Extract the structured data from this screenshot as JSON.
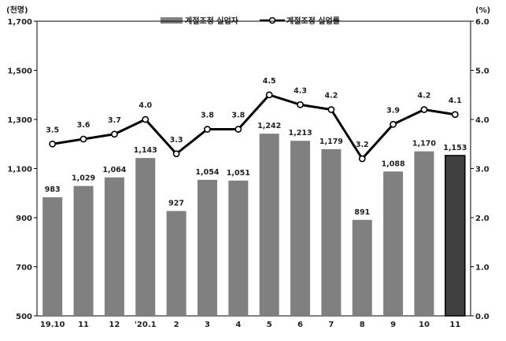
{
  "chart_data": {
    "type": "bar+line",
    "left_unit": "(천명)",
    "right_unit": "(%)",
    "categories": [
      "19.10",
      "11",
      "12",
      "'20.1",
      "2",
      "3",
      "4",
      "5",
      "6",
      "7",
      "8",
      "9",
      "10",
      "11"
    ],
    "left_axis": {
      "range": [
        500,
        1700
      ],
      "ticks": [
        "500",
        "700",
        "900",
        "1,100",
        "1,300",
        "1,500",
        "1,700"
      ],
      "tick_values": [
        500,
        700,
        900,
        1100,
        1300,
        1500,
        1700
      ]
    },
    "right_axis": {
      "range": [
        0,
        6
      ],
      "ticks": [
        "0.0",
        "1.0",
        "2.0",
        "3.0",
        "4.0",
        "5.0",
        "6.0"
      ],
      "tick_values": [
        0,
        1,
        2,
        3,
        4,
        5,
        6
      ]
    },
    "series": [
      {
        "name": "계절조정 실업자",
        "kind": "bar",
        "axis": "left",
        "values": [
          983,
          1029,
          1064,
          1143,
          927,
          1054,
          1051,
          1242,
          1213,
          1179,
          891,
          1088,
          1170,
          1153
        ],
        "labels": [
          "983",
          "1,029",
          "1,064",
          "1,143",
          "927",
          "1,054",
          "1,051",
          "1,242",
          "1,213",
          "1,179",
          "891",
          "1,088",
          "1,170",
          "1,153"
        ],
        "color": "#808080",
        "highlight_last_color": "#404040"
      },
      {
        "name": "계절조정 실업률",
        "kind": "line",
        "axis": "right",
        "values": [
          3.5,
          3.6,
          3.7,
          4.0,
          3.3,
          3.8,
          3.8,
          4.5,
          4.3,
          4.2,
          3.2,
          3.9,
          4.2,
          4.1
        ],
        "labels": [
          "3.5",
          "3.6",
          "3.7",
          "4.0",
          "3.3",
          "3.8",
          "3.8",
          "4.5",
          "4.3",
          "4.2",
          "3.2",
          "3.9",
          "4.2",
          "4.1"
        ],
        "color": "#000000"
      }
    ],
    "grid": false,
    "legend_position": "top-center"
  }
}
